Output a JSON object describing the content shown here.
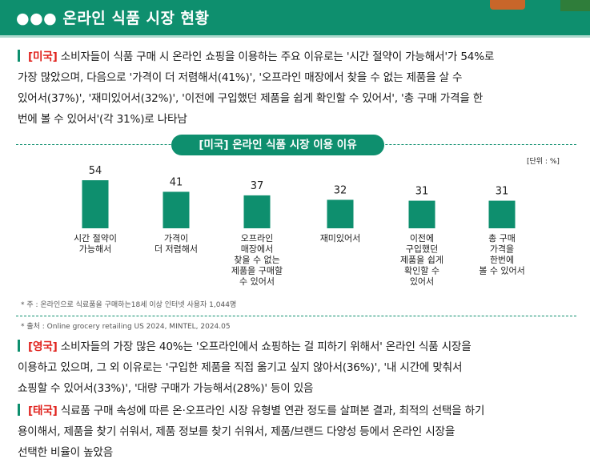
{
  "header": {
    "title": "●●● 온라인 식품 시장 현황"
  },
  "para1": {
    "tag": "[미국]",
    "lines": [
      "소비자들이 식품 구매 시 온라인 쇼핑을 이용하는 주요 이유로는 '시간 절약이 가능해서'가 54%로",
      "가장 많았으며, 다음으로 '가격이 더 저렴해서(41%)', '오프라인 매장에서 찾을 수 없는 제품을 살 수",
      "있어서(37%)', '재미있어서(32%)', '이전에 구입했던 제품을 쉽게 확인할 수 있어서', '총 구매 가격을 한",
      "번에 볼 수 있어서'(각 31%)로 나타남"
    ]
  },
  "chart_data": {
    "type": "bar",
    "title": "[미국] 온라인 식품 시장 이용 이유",
    "unit": "[단위 : %]",
    "categories": [
      [
        "시간 절약이",
        "가능해서"
      ],
      [
        "가격이",
        "더 저렴해서"
      ],
      [
        "오프라인",
        "매장에서",
        "찾을 수 없는",
        "제품을 구매할",
        "수 있어서"
      ],
      [
        "재미있어서"
      ],
      [
        "이전에",
        "구입했던",
        "제품을 쉽게",
        "확인할 수",
        "있어서"
      ],
      [
        "총 구매",
        "가격을",
        "한번에",
        "볼 수 있어서"
      ]
    ],
    "values": [
      54,
      41,
      37,
      32,
      31,
      31
    ],
    "color": "#0e8f6e"
  },
  "footnotes": {
    "note": "* 주 : 온라인으로 식료품을 구매하는18세 이상 인터넷 사용자 1,044명",
    "source": "* 출처 : Online grocery retailing US 2024, MINTEL, 2024.05"
  },
  "para2": {
    "tag": "[영국]",
    "lines": [
      "소비자들의 가장 많은 40%는 '오프라인에서 쇼핑하는 걸 피하기 위해서' 온라인 식품 시장을",
      "이용하고 있으며, 그 외 이유로는 '구입한 제품을 직접 옮기고 싶지 않아서(36%)', '내 시간에 맞춰서",
      "쇼핑할 수 있어서(33%)', '대량 구매가 가능해서(28%)' 등이 있음"
    ]
  },
  "para3": {
    "tag": "[태국]",
    "lines": [
      "식료품 구매 속성에 따른 온·오프라인 시장 유형별 연관 정도를 살펴본 결과, 최적의 선택을 하기",
      "용이해서, 제품을 찾기 쉬워서, 제품 정보를 찾기 쉬워서, 제품/브랜드 다양성 등에서 온라인 시장을",
      "선택한 비율이 높았음"
    ]
  }
}
